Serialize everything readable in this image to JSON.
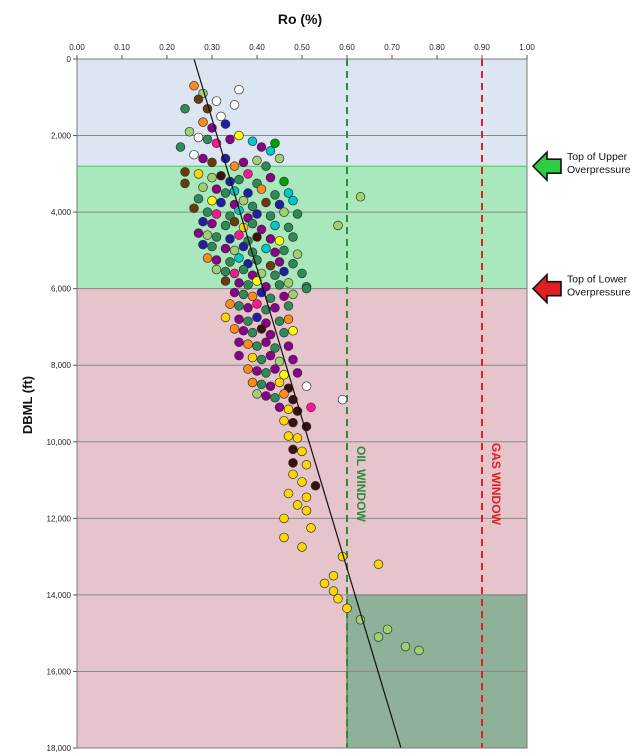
{
  "chart_data": {
    "type": "scatter",
    "x_axis_title": "Ro (%)",
    "y_axis_title": "DBML (ft)",
    "x_ticks": [
      "0.00",
      "0.10",
      "0.20",
      "0.30",
      "0.40",
      "0.50",
      "0.60",
      "0.70",
      "0.80",
      "0.90",
      "1.00"
    ],
    "y_ticks": [
      "0",
      "2,000",
      "4,000",
      "6,000",
      "8,000",
      "10,000",
      "12,000",
      "14,000",
      "16,000",
      "18,000"
    ],
    "xlim": [
      0,
      1.0
    ],
    "ylim": [
      0,
      18000
    ],
    "y_inverted": true,
    "x_axis_position": "top",
    "grid": "horizontal",
    "zones": [
      {
        "name": "normal",
        "depth_from": 0,
        "depth_to": 2800,
        "ro_from": 0.0,
        "ro_to": 1.0,
        "color": "#dce6f2"
      },
      {
        "name": "upper-overpressure",
        "depth_from": 2800,
        "depth_to": 6000,
        "ro_from": 0.0,
        "ro_to": 1.0,
        "color": "#a8e8bc"
      },
      {
        "name": "lower-overpressure",
        "depth_from": 6000,
        "depth_to": 18000,
        "ro_from": 0.0,
        "ro_to": 1.0,
        "color": "#e6c4cc"
      },
      {
        "name": "gas-box",
        "depth_from": 14000,
        "depth_to": 18000,
        "ro_from": 0.6,
        "ro_to": 1.0,
        "color": "#8fb199"
      }
    ],
    "window_lines": [
      {
        "label": "OIL WINDOW",
        "ro": 0.6,
        "color": "#2e8b3a"
      },
      {
        "label": "GAS WINDOW",
        "ro": 0.9,
        "color": "#e02020"
      }
    ],
    "trend_line": {
      "from": [
        0.26,
        0
      ],
      "to": [
        0.72,
        18000
      ]
    },
    "annotations": [
      {
        "text_lines": [
          "Top of Upper",
          "Overpressure"
        ],
        "depth": 2800,
        "arrow_color": "#2ecc40"
      },
      {
        "text_lines": [
          "Top of Lower",
          "Overpressure"
        ],
        "depth": 6000,
        "arrow_color": "#e02020"
      }
    ],
    "point_colors": [
      "#ff8c1a",
      "#8b008b",
      "#2e8b57",
      "#1e1ea8",
      "#ff1493",
      "#00c8c8",
      "#a0d070",
      "#ffd700",
      "#6b3a0a",
      "#3a1010",
      "#c0c0c0",
      "#00a000",
      "#ffff00"
    ],
    "points": [
      [
        0.26,
        700,
        "#ff8c1a"
      ],
      [
        0.28,
        900,
        "#a0d070"
      ],
      [
        0.31,
        1100,
        "#ffffff"
      ],
      [
        0.36,
        800,
        "#ffffff"
      ],
      [
        0.35,
        1200,
        "#ffffff"
      ],
      [
        0.27,
        1050,
        "#6b3a0a"
      ],
      [
        0.29,
        1300,
        "#6b3a0a"
      ],
      [
        0.24,
        1300,
        "#2e8b57"
      ],
      [
        0.32,
        1500,
        "#ffffff"
      ],
      [
        0.33,
        1700,
        "#1e1ea8"
      ],
      [
        0.3,
        1800,
        "#8b008b"
      ],
      [
        0.28,
        1650,
        "#ff8c1a"
      ],
      [
        0.25,
        1900,
        "#a0d070"
      ],
      [
        0.27,
        2050,
        "#ffffff"
      ],
      [
        0.29,
        2100,
        "#2e8b57"
      ],
      [
        0.31,
        2200,
        "#ff1493"
      ],
      [
        0.34,
        2100,
        "#8b008b"
      ],
      [
        0.36,
        2000,
        "#ffff00"
      ],
      [
        0.39,
        2150,
        "#00c8c8"
      ],
      [
        0.41,
        2300,
        "#8b008b"
      ],
      [
        0.44,
        2200,
        "#00a000"
      ],
      [
        0.43,
        2400,
        "#00c8c8"
      ],
      [
        0.23,
        2300,
        "#2e8b57"
      ],
      [
        0.26,
        2500,
        "#ffffff"
      ],
      [
        0.28,
        2600,
        "#8b008b"
      ],
      [
        0.3,
        2700,
        "#6b3a0a"
      ],
      [
        0.33,
        2600,
        "#1e1ea8"
      ],
      [
        0.35,
        2800,
        "#ff8c1a"
      ],
      [
        0.37,
        2700,
        "#8b008b"
      ],
      [
        0.4,
        2650,
        "#a0d070"
      ],
      [
        0.42,
        2800,
        "#2e8b57"
      ],
      [
        0.45,
        2600,
        "#a0d070"
      ],
      [
        0.24,
        2950,
        "#6b3a0a"
      ],
      [
        0.27,
        3000,
        "#ffd700"
      ],
      [
        0.3,
        3100,
        "#a0d070"
      ],
      [
        0.32,
        3050,
        "#3a1010"
      ],
      [
        0.34,
        3200,
        "#1e1ea8"
      ],
      [
        0.36,
        3150,
        "#2e8b57"
      ],
      [
        0.38,
        3000,
        "#ff1493"
      ],
      [
        0.4,
        3250,
        "#2e8b57"
      ],
      [
        0.43,
        3100,
        "#8b008b"
      ],
      [
        0.46,
        3200,
        "#00a000"
      ],
      [
        0.24,
        3250,
        "#6b3a0a"
      ],
      [
        0.28,
        3350,
        "#a0d070"
      ],
      [
        0.31,
        3400,
        "#8b008b"
      ],
      [
        0.33,
        3500,
        "#2e8b57"
      ],
      [
        0.35,
        3450,
        "#00c8c8"
      ],
      [
        0.38,
        3500,
        "#1e1ea8"
      ],
      [
        0.41,
        3400,
        "#ff8c1a"
      ],
      [
        0.44,
        3550,
        "#2e8b57"
      ],
      [
        0.47,
        3500,
        "#00c8c8"
      ],
      [
        0.27,
        3650,
        "#2e8b57"
      ],
      [
        0.3,
        3700,
        "#ffff00"
      ],
      [
        0.32,
        3750,
        "#1e1ea8"
      ],
      [
        0.35,
        3800,
        "#8b008b"
      ],
      [
        0.37,
        3700,
        "#a0d070"
      ],
      [
        0.39,
        3850,
        "#2e8b57"
      ],
      [
        0.42,
        3750,
        "#6b3a0a"
      ],
      [
        0.45,
        3800,
        "#1e1ea8"
      ],
      [
        0.48,
        3700,
        "#00c8c8"
      ],
      [
        0.26,
        3900,
        "#6b3a0a"
      ],
      [
        0.29,
        4000,
        "#2e8b57"
      ],
      [
        0.31,
        4050,
        "#ff1493"
      ],
      [
        0.34,
        4100,
        "#2e8b57"
      ],
      [
        0.36,
        3950,
        "#00c8c8"
      ],
      [
        0.38,
        4150,
        "#8b008b"
      ],
      [
        0.4,
        4050,
        "#1e1ea8"
      ],
      [
        0.43,
        4100,
        "#2e8b57"
      ],
      [
        0.46,
        4000,
        "#a0d070"
      ],
      [
        0.49,
        4050,
        "#2e8b57"
      ],
      [
        0.28,
        4250,
        "#1e1ea8"
      ],
      [
        0.3,
        4300,
        "#8b008b"
      ],
      [
        0.33,
        4350,
        "#2e8b57"
      ],
      [
        0.35,
        4250,
        "#6b3a0a"
      ],
      [
        0.37,
        4400,
        "#ffd700"
      ],
      [
        0.39,
        4300,
        "#2e8b57"
      ],
      [
        0.41,
        4450,
        "#8b008b"
      ],
      [
        0.44,
        4350,
        "#00c8c8"
      ],
      [
        0.47,
        4400,
        "#2e8b57"
      ],
      [
        0.27,
        4550,
        "#8b008b"
      ],
      [
        0.29,
        4600,
        "#a0d070"
      ],
      [
        0.31,
        4650,
        "#2e8b57"
      ],
      [
        0.34,
        4700,
        "#1e1ea8"
      ],
      [
        0.36,
        4600,
        "#ff1493"
      ],
      [
        0.38,
        4750,
        "#2e8b57"
      ],
      [
        0.4,
        4650,
        "#3a1010"
      ],
      [
        0.43,
        4700,
        "#8b008b"
      ],
      [
        0.45,
        4750,
        "#ffff00"
      ],
      [
        0.48,
        4650,
        "#2e8b57"
      ],
      [
        0.28,
        4850,
        "#1e1ea8"
      ],
      [
        0.3,
        4900,
        "#2e8b57"
      ],
      [
        0.33,
        4950,
        "#8b008b"
      ],
      [
        0.35,
        5000,
        "#a0d070"
      ],
      [
        0.37,
        4900,
        "#1e1ea8"
      ],
      [
        0.39,
        5050,
        "#2e8b57"
      ],
      [
        0.42,
        4950,
        "#00c8c8"
      ],
      [
        0.44,
        5050,
        "#8b008b"
      ],
      [
        0.46,
        5000,
        "#2e8b57"
      ],
      [
        0.49,
        5100,
        "#a0d070"
      ],
      [
        0.29,
        5200,
        "#ff8c1a"
      ],
      [
        0.31,
        5250,
        "#8b008b"
      ],
      [
        0.34,
        5300,
        "#2e8b57"
      ],
      [
        0.36,
        5200,
        "#00c8c8"
      ],
      [
        0.38,
        5350,
        "#1e1ea8"
      ],
      [
        0.4,
        5250,
        "#2e8b57"
      ],
      [
        0.43,
        5400,
        "#6b3a0a"
      ],
      [
        0.45,
        5300,
        "#8b008b"
      ],
      [
        0.48,
        5350,
        "#2e8b57"
      ],
      [
        0.31,
        5500,
        "#a0d070"
      ],
      [
        0.33,
        5550,
        "#2e8b57"
      ],
      [
        0.35,
        5600,
        "#ff1493"
      ],
      [
        0.37,
        5500,
        "#2e8b57"
      ],
      [
        0.39,
        5650,
        "#8b008b"
      ],
      [
        0.41,
        5600,
        "#a0d070"
      ],
      [
        0.44,
        5650,
        "#2e8b57"
      ],
      [
        0.46,
        5550,
        "#1e1ea8"
      ],
      [
        0.5,
        5600,
        "#2e8b57"
      ],
      [
        0.33,
        5800,
        "#6b3a0a"
      ],
      [
        0.36,
        5850,
        "#8b008b"
      ],
      [
        0.38,
        5900,
        "#2e8b57"
      ],
      [
        0.4,
        5800,
        "#ffff00"
      ],
      [
        0.42,
        5950,
        "#8b008b"
      ],
      [
        0.45,
        5900,
        "#2e8b57"
      ],
      [
        0.47,
        5850,
        "#a0d070"
      ],
      [
        0.51,
        5950,
        "#2e8b57"
      ],
      [
        0.35,
        6100,
        "#8b008b"
      ],
      [
        0.37,
        6150,
        "#2e8b57"
      ],
      [
        0.39,
        6200,
        "#ff8c1a"
      ],
      [
        0.41,
        6100,
        "#1e1ea8"
      ],
      [
        0.43,
        6250,
        "#2e8b57"
      ],
      [
        0.46,
        6200,
        "#8b008b"
      ],
      [
        0.48,
        6150,
        "#a0d070"
      ],
      [
        0.34,
        6400,
        "#ff8c1a"
      ],
      [
        0.36,
        6450,
        "#2e8b57"
      ],
      [
        0.38,
        6500,
        "#8b008b"
      ],
      [
        0.4,
        6400,
        "#ff1493"
      ],
      [
        0.42,
        6550,
        "#2e8b57"
      ],
      [
        0.44,
        6500,
        "#8b008b"
      ],
      [
        0.47,
        6450,
        "#2e8b57"
      ],
      [
        0.33,
        6750,
        "#ffd700"
      ],
      [
        0.36,
        6800,
        "#8b008b"
      ],
      [
        0.38,
        6850,
        "#2e8b57"
      ],
      [
        0.4,
        6750,
        "#1e1ea8"
      ],
      [
        0.42,
        6900,
        "#8b008b"
      ],
      [
        0.45,
        6850,
        "#2e8b57"
      ],
      [
        0.47,
        6800,
        "#ff8c1a"
      ],
      [
        0.35,
        7050,
        "#ff8c1a"
      ],
      [
        0.37,
        7100,
        "#8b008b"
      ],
      [
        0.39,
        7150,
        "#2e8b57"
      ],
      [
        0.41,
        7050,
        "#3a1010"
      ],
      [
        0.43,
        7200,
        "#8b008b"
      ],
      [
        0.46,
        7150,
        "#2e8b57"
      ],
      [
        0.48,
        7100,
        "#ffff00"
      ],
      [
        0.36,
        7400,
        "#8b008b"
      ],
      [
        0.38,
        7450,
        "#ff8c1a"
      ],
      [
        0.4,
        7500,
        "#2e8b57"
      ],
      [
        0.42,
        7400,
        "#8b008b"
      ],
      [
        0.44,
        7550,
        "#2e8b57"
      ],
      [
        0.47,
        7500,
        "#8b008b"
      ],
      [
        0.36,
        7750,
        "#8b008b"
      ],
      [
        0.39,
        7800,
        "#ffd700"
      ],
      [
        0.41,
        7850,
        "#2e8b57"
      ],
      [
        0.43,
        7750,
        "#8b008b"
      ],
      [
        0.45,
        7900,
        "#a0d070"
      ],
      [
        0.48,
        7850,
        "#8b008b"
      ],
      [
        0.38,
        8100,
        "#ff8c1a"
      ],
      [
        0.4,
        8150,
        "#8b008b"
      ],
      [
        0.42,
        8200,
        "#2e8b57"
      ],
      [
        0.44,
        8100,
        "#8b008b"
      ],
      [
        0.46,
        8250,
        "#ffff00"
      ],
      [
        0.49,
        8200,
        "#8b008b"
      ],
      [
        0.39,
        8450,
        "#ff8c1a"
      ],
      [
        0.41,
        8500,
        "#2e8b57"
      ],
      [
        0.43,
        8550,
        "#8b008b"
      ],
      [
        0.45,
        8450,
        "#ffd700"
      ],
      [
        0.47,
        8600,
        "#3a1010"
      ],
      [
        0.51,
        8550,
        "#ffffff"
      ],
      [
        0.4,
        8750,
        "#a0d070"
      ],
      [
        0.42,
        8800,
        "#8b008b"
      ],
      [
        0.44,
        8850,
        "#2e8b57"
      ],
      [
        0.46,
        8750,
        "#ff8c1a"
      ],
      [
        0.48,
        8900,
        "#3a1010"
      ],
      [
        0.59,
        8900,
        "#ffffff"
      ],
      [
        0.45,
        9100,
        "#8b008b"
      ],
      [
        0.47,
        9150,
        "#ffd700"
      ],
      [
        0.49,
        9200,
        "#3a1010"
      ],
      [
        0.52,
        9100,
        "#ff1493"
      ],
      [
        0.46,
        9450,
        "#ffd700"
      ],
      [
        0.48,
        9500,
        "#3a1010"
      ],
      [
        0.51,
        9600,
        "#3a1010"
      ],
      [
        0.47,
        9850,
        "#ffd700"
      ],
      [
        0.49,
        9900,
        "#ffd700"
      ],
      [
        0.48,
        10200,
        "#3a1010"
      ],
      [
        0.5,
        10250,
        "#ffd700"
      ],
      [
        0.48,
        10550,
        "#3a1010"
      ],
      [
        0.51,
        10600,
        "#ffd700"
      ],
      [
        0.48,
        10850,
        "#ffd700"
      ],
      [
        0.5,
        11050,
        "#ffd700"
      ],
      [
        0.53,
        11150,
        "#3a1010"
      ],
      [
        0.47,
        11350,
        "#ffd700"
      ],
      [
        0.51,
        11450,
        "#ffd700"
      ],
      [
        0.49,
        11650,
        "#ffd700"
      ],
      [
        0.51,
        11800,
        "#ffd700"
      ],
      [
        0.46,
        12000,
        "#ffd700"
      ],
      [
        0.52,
        12250,
        "#ffd700"
      ],
      [
        0.46,
        12500,
        "#ffd700"
      ],
      [
        0.5,
        12750,
        "#ffd700"
      ],
      [
        0.59,
        13000,
        "#ffd700"
      ],
      [
        0.67,
        13200,
        "#ffd700"
      ],
      [
        0.57,
        13500,
        "#ffd700"
      ],
      [
        0.55,
        13700,
        "#ffd700"
      ],
      [
        0.57,
        13900,
        "#ffd700"
      ],
      [
        0.58,
        14100,
        "#ffd700"
      ],
      [
        0.6,
        14350,
        "#ffd700"
      ],
      [
        0.63,
        14650,
        "#a0d070"
      ],
      [
        0.69,
        14900,
        "#a0d070"
      ],
      [
        0.67,
        15100,
        "#a0d070"
      ],
      [
        0.73,
        15350,
        "#a0d070"
      ],
      [
        0.76,
        15450,
        "#a0d070"
      ],
      [
        0.63,
        3600,
        "#a0d070"
      ],
      [
        0.58,
        4350,
        "#a0d070"
      ],
      [
        0.51,
        6000,
        "#2e8b57"
      ]
    ]
  }
}
